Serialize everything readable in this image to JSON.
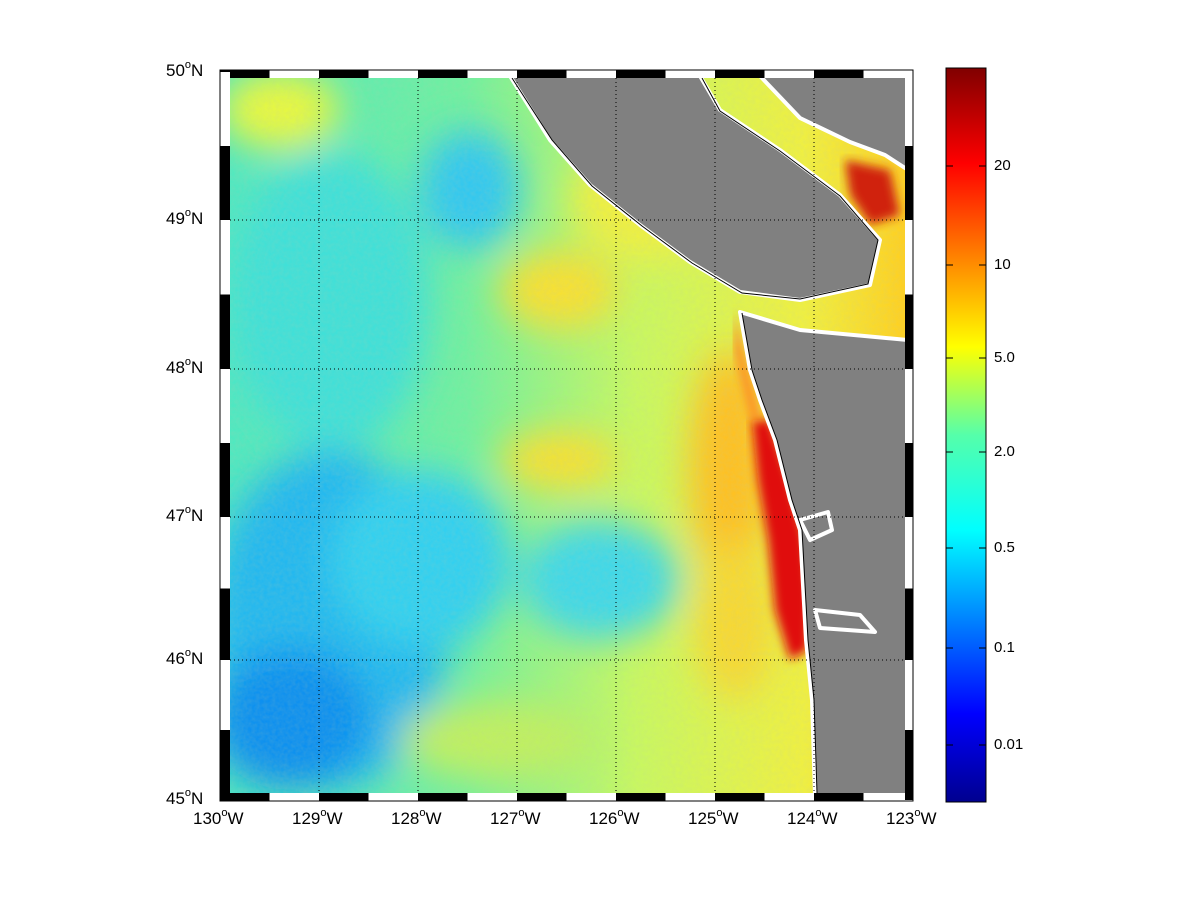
{
  "map": {
    "lon_ticks": [
      {
        "deg": "130",
        "hem": "W"
      },
      {
        "deg": "129",
        "hem": "W"
      },
      {
        "deg": "128",
        "hem": "W"
      },
      {
        "deg": "127",
        "hem": "W"
      },
      {
        "deg": "126",
        "hem": "W"
      },
      {
        "deg": "125",
        "hem": "W"
      },
      {
        "deg": "124",
        "hem": "W"
      },
      {
        "deg": "123",
        "hem": "W"
      }
    ],
    "lat_ticks": [
      {
        "deg": "50",
        "hem": "N"
      },
      {
        "deg": "49",
        "hem": "N"
      },
      {
        "deg": "48",
        "hem": "N"
      },
      {
        "deg": "47",
        "hem": "N"
      },
      {
        "deg": "46",
        "hem": "N"
      },
      {
        "deg": "45",
        "hem": "N"
      }
    ],
    "lon_range": [
      -130,
      -123
    ],
    "lat_range": [
      45,
      50
    ],
    "grid": "dotted",
    "land_color": "#808080",
    "colormap": "jet",
    "colorbar": {
      "ticks": [
        "20",
        "10",
        "5.0",
        "2.0",
        "0.5",
        "0.1",
        "0.01"
      ],
      "placement": "right",
      "scale": "log"
    }
  }
}
